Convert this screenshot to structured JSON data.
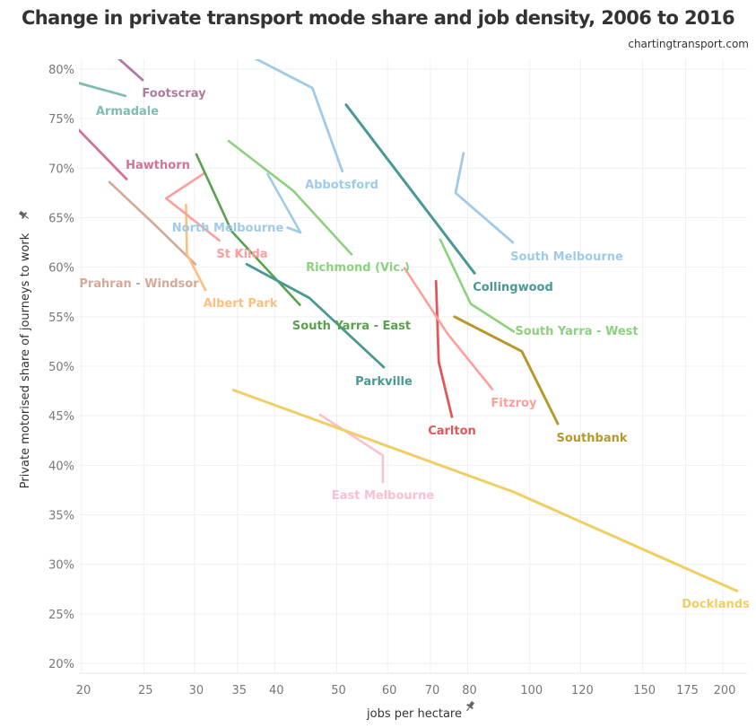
{
  "header": {
    "title": "Change in private transport mode share and job density, 2006 to 2016",
    "source": "chartingtransport.com"
  },
  "chart_data": {
    "type": "line",
    "title": "Change in private transport mode share and job density, 2006 to 2016",
    "subtitle": "chartingtransport.com",
    "xlabel": "jobs per hectare",
    "ylabel": "Private motorised share of journeys to work",
    "xscale": "log",
    "xlim": [
      19.5,
      215
    ],
    "ylim": [
      19,
      81
    ],
    "x_ticks": [
      20,
      25,
      30,
      35,
      40,
      50,
      60,
      70,
      80,
      100,
      120,
      150,
      175,
      200
    ],
    "y_ticks": [
      20,
      25,
      30,
      35,
      40,
      45,
      50,
      55,
      60,
      65,
      70,
      75,
      80
    ],
    "y_tick_suffix": "%",
    "grid": true,
    "legend": "none (direct labels)",
    "series": [
      {
        "name": "Footscray",
        "color": "#b07aa1",
        "points": [
          [
            22.0,
            82.0
          ],
          [
            24.9,
            78.9
          ]
        ]
      },
      {
        "name": "Armadale",
        "color": "#7ebdb0",
        "points": [
          [
            19.0,
            78.9
          ],
          [
            23.4,
            77.3
          ]
        ]
      },
      {
        "name": "Hawthorn",
        "color": "#d37295",
        "points": [
          [
            19.5,
            74.3
          ],
          [
            23.5,
            68.9
          ]
        ]
      },
      {
        "name": "Prahran - Windsor",
        "color": "#d4a996",
        "points": [
          [
            22.1,
            68.6
          ],
          [
            25.8,
            64.5
          ],
          [
            30.1,
            60.3
          ]
        ]
      },
      {
        "name": "Albert Park",
        "color": "#ffbe7d",
        "points": [
          [
            29.1,
            66.3
          ],
          [
            29.2,
            61.3
          ],
          [
            31.2,
            57.7
          ]
        ]
      },
      {
        "name": "St Kilda",
        "color": "#ff9d9a",
        "points": [
          [
            31.1,
            69.5
          ],
          [
            27.1,
            66.95
          ],
          [
            32.8,
            62.7
          ]
        ]
      },
      {
        "name": "North Melbourne",
        "color": "#a0cbe8",
        "points": [
          [
            39.0,
            69.4
          ],
          [
            43.9,
            63.5
          ],
          [
            41.9,
            64.0
          ]
        ]
      },
      {
        "name": "South Yarra - East",
        "color": "#59a14f",
        "points": [
          [
            30.2,
            71.4
          ],
          [
            34.3,
            63.6
          ],
          [
            43.8,
            56.2
          ]
        ]
      },
      {
        "name": "Parkville",
        "color": "#499894",
        "points": [
          [
            36.2,
            60.3
          ],
          [
            45.3,
            56.9
          ],
          [
            59.2,
            49.9
          ]
        ]
      },
      {
        "name": "Richmond (Vic.)",
        "color": "#8cd17d",
        "points": [
          [
            33.9,
            72.75
          ],
          [
            42.8,
            67.7
          ],
          [
            52.7,
            61.3
          ]
        ]
      },
      {
        "name": "Abbotsford",
        "color": "#a0cbe8",
        "points": [
          [
            35.0,
            82.0
          ],
          [
            45.8,
            78.1
          ],
          [
            51.0,
            69.7
          ]
        ]
      },
      {
        "name": "Collingwood",
        "color": "#499894",
        "points": [
          [
            51.7,
            76.4
          ],
          [
            82.0,
            59.4
          ]
        ]
      },
      {
        "name": "South Melbourne",
        "color": "#a0cbe8",
        "points": [
          [
            78.8,
            71.5
          ],
          [
            76.6,
            67.5
          ],
          [
            94.1,
            62.5
          ]
        ]
      },
      {
        "name": "South Yarra - West",
        "color": "#8cd17d",
        "points": [
          [
            72.5,
            62.8
          ],
          [
            80.9,
            56.3
          ],
          [
            94.4,
            53.5
          ]
        ]
      },
      {
        "name": "Carlton",
        "color": "#e15759",
        "points": [
          [
            71.4,
            58.6
          ],
          [
            72.1,
            50.45
          ],
          [
            75.6,
            44.9
          ]
        ]
      },
      {
        "name": "Fitzroy",
        "color": "#ff9d9a",
        "points": [
          [
            63.8,
            59.9
          ],
          [
            74.4,
            53.3
          ],
          [
            87.4,
            47.7
          ]
        ]
      },
      {
        "name": "Southbank",
        "color": "#b6992d",
        "points": [
          [
            76.3,
            55.0
          ],
          [
            97.2,
            51.5
          ],
          [
            110.6,
            44.2
          ]
        ]
      },
      {
        "name": "East Melbourne",
        "color": "#fabfd2",
        "points": [
          [
            47.1,
            45.1
          ],
          [
            59.0,
            41.0
          ],
          [
            59.0,
            38.3
          ]
        ]
      },
      {
        "name": "Docklands",
        "color": "#f1ce63",
        "points": [
          [
            34.5,
            47.6
          ],
          [
            94.4,
            37.3
          ],
          [
            210.5,
            27.3
          ]
        ]
      }
    ]
  }
}
